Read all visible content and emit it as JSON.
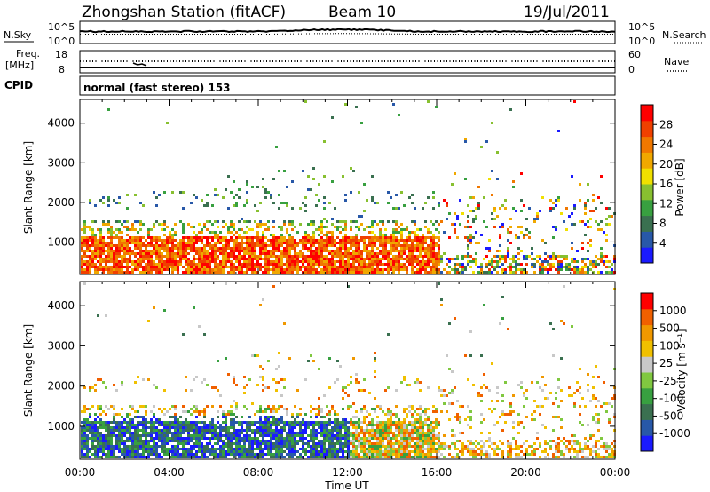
{
  "header": {
    "station": "Zhongshan Station (fitACF)",
    "beam": "Beam 10",
    "date": "19/Jul/2011"
  },
  "small_panels": {
    "nsky_label": "N.Sky",
    "nsearch_label": "N.Search",
    "noise_ticks_left": [
      "10^5",
      "10^0"
    ],
    "noise_ticks_right": [
      "10^5",
      "10^0"
    ],
    "freq_label_1": "Freq.",
    "freq_label_2": "[MHz]",
    "freq_ticks": [
      "18",
      "8"
    ],
    "nave_label": "Nave",
    "nave_ticks": [
      "60",
      "0"
    ],
    "cpid_label": "CPID",
    "cpid_text": "normal (fast stereo) 153"
  },
  "colors": {
    "power": [
      "#1a1aff",
      "#2858a8",
      "#3a7050",
      "#38a040",
      "#88c030",
      "#f0e000",
      "#f0a800",
      "#f07800",
      "#f04000",
      "#ff0000"
    ],
    "velocity": [
      "#1a1aff",
      "#2858a8",
      "#3a7050",
      "#38a040",
      "#80c840",
      "#c8c8c8",
      "#f0c000",
      "#f09800",
      "#f06000",
      "#ff0000"
    ]
  },
  "chart_data": [
    {
      "type": "heatmap",
      "name": "power",
      "ylabel": "Slant Range [km]",
      "xlabel": "",
      "x_ticks": [
        "00:00",
        "04:00",
        "08:00",
        "12:00",
        "16:00",
        "20:00",
        "00:00"
      ],
      "y_ticks": [
        "1000",
        "2000",
        "3000",
        "4000"
      ],
      "ylim": [
        180,
        4600
      ],
      "colorbar": {
        "label": "Power [dB]",
        "ticks": [
          "28",
          "24",
          "20",
          "16",
          "12",
          "8",
          "4"
        ],
        "range": [
          0,
          32
        ]
      }
    },
    {
      "type": "heatmap",
      "name": "velocity",
      "ylabel": "Slant Range [km]",
      "xlabel": "Time UT",
      "x_ticks": [
        "00:00",
        "04:00",
        "08:00",
        "12:00",
        "16:00",
        "20:00",
        "00:00"
      ],
      "y_ticks": [
        "1000",
        "2000",
        "3000",
        "4000"
      ],
      "ylim": [
        180,
        4600
      ],
      "colorbar": {
        "label": "Velocity [m s⁻¹]",
        "ticks": [
          "1000",
          "500",
          "100",
          "25",
          "-25",
          "-100",
          "-500",
          "-1000"
        ]
      }
    }
  ]
}
